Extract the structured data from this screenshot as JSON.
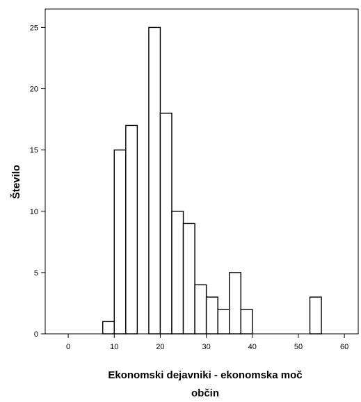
{
  "chart_data": {
    "type": "bar",
    "xlabel": "Ekonomski dejavniki - ekonomska moč",
    "xlabel_line2": "občin",
    "ylabel": "Število",
    "xlim": [
      -5,
      63
    ],
    "ylim": [
      0,
      26.5
    ],
    "x_ticks": [
      0,
      10,
      20,
      30,
      40,
      50,
      60
    ],
    "y_ticks": [
      0,
      5,
      10,
      15,
      20,
      25
    ],
    "bin_width": 2.5,
    "bins": [
      {
        "start": 7.5,
        "count": 1
      },
      {
        "start": 10.0,
        "count": 15
      },
      {
        "start": 12.5,
        "count": 17
      },
      {
        "start": 17.5,
        "count": 25
      },
      {
        "start": 20.0,
        "count": 18
      },
      {
        "start": 22.5,
        "count": 10
      },
      {
        "start": 25.0,
        "count": 9
      },
      {
        "start": 27.5,
        "count": 4
      },
      {
        "start": 30.0,
        "count": 3
      },
      {
        "start": 32.5,
        "count": 2
      },
      {
        "start": 35.0,
        "count": 5
      },
      {
        "start": 37.5,
        "count": 2
      },
      {
        "start": 52.5,
        "count": 3
      }
    ],
    "colors": {
      "bar_fill": "#ffffff",
      "stroke": "#000000"
    }
  }
}
